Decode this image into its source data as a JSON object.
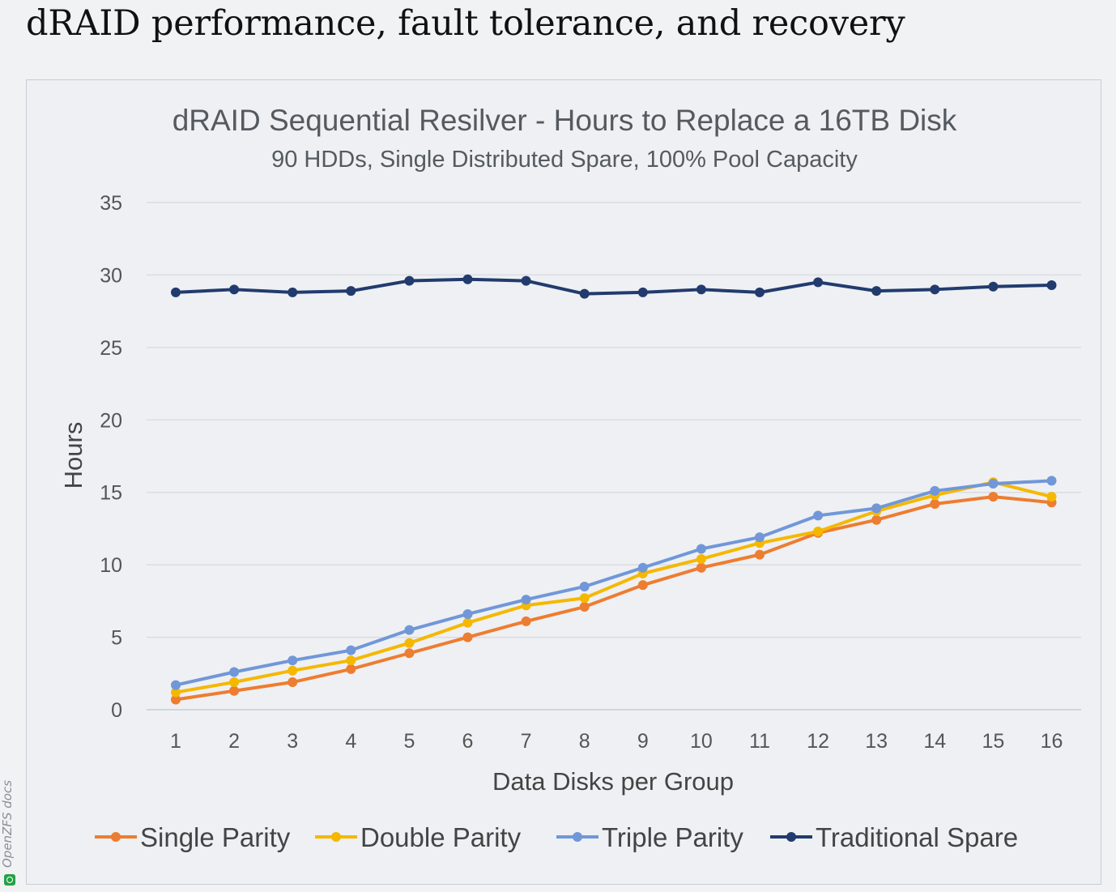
{
  "page": {
    "heading": "dRAID performance, fault tolerance, and recovery",
    "watermark": "OpenZFS docs"
  },
  "chart_data": {
    "type": "line",
    "title": "dRAID Sequential Resilver - Hours to Replace a 16TB Disk",
    "subtitle": "90 HDDs, Single Distributed Spare, 100% Pool Capacity",
    "xlabel": "Data Disks per Group",
    "ylabel": "Hours",
    "categories": [
      "1",
      "2",
      "3",
      "4",
      "5",
      "6",
      "7",
      "8",
      "9",
      "10",
      "11",
      "12",
      "13",
      "14",
      "15",
      "16"
    ],
    "ylim": [
      0,
      35
    ],
    "yticks": [
      "0",
      "5",
      "10",
      "15",
      "20",
      "25",
      "30",
      "35"
    ],
    "grid": true,
    "legend_position": "bottom",
    "series": [
      {
        "name": "Single Parity",
        "color": "#ed7d31",
        "values": [
          0.7,
          1.3,
          1.9,
          2.8,
          3.9,
          5.0,
          6.1,
          7.1,
          8.6,
          9.8,
          10.7,
          12.2,
          13.1,
          14.2,
          14.7,
          14.3
        ]
      },
      {
        "name": "Double Parity",
        "color": "#f5b800",
        "values": [
          1.2,
          1.9,
          2.7,
          3.4,
          4.6,
          6.0,
          7.2,
          7.7,
          9.4,
          10.4,
          11.5,
          12.3,
          13.7,
          14.8,
          15.7,
          14.7
        ]
      },
      {
        "name": "Triple Parity",
        "color": "#7197d8",
        "values": [
          1.7,
          2.6,
          3.4,
          4.1,
          5.5,
          6.6,
          7.6,
          8.5,
          9.8,
          11.1,
          11.9,
          13.4,
          13.9,
          15.1,
          15.6,
          15.8
        ]
      },
      {
        "name": "Traditional Spare",
        "color": "#223b6e",
        "values": [
          28.8,
          29.0,
          28.8,
          28.9,
          29.6,
          29.7,
          29.6,
          28.7,
          28.8,
          29.0,
          28.8,
          29.5,
          28.9,
          29.0,
          29.2,
          29.3
        ]
      }
    ]
  }
}
